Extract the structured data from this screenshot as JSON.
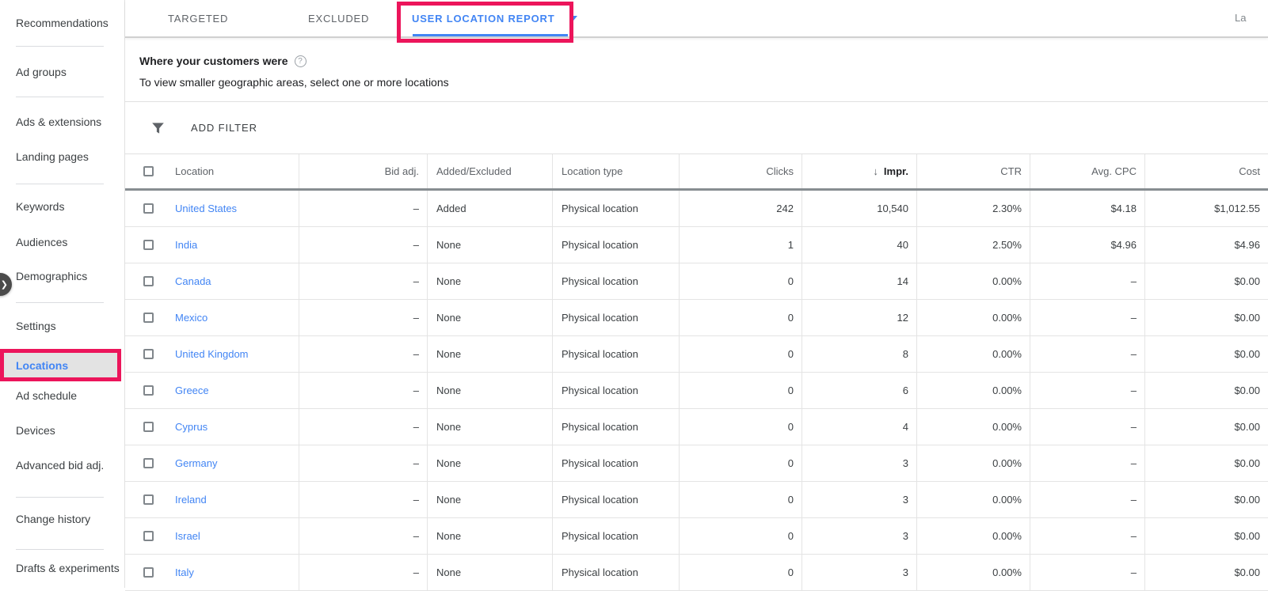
{
  "colors": {
    "annotation_pink": "#ec155b",
    "link_blue": "#4285f4"
  },
  "icons": {
    "expand_chevron": "❯",
    "help": "?"
  },
  "top_right_partial": "La",
  "sidebar": {
    "items": [
      {
        "label": "Recommendations"
      },
      {
        "label": "Ad groups"
      },
      {
        "label": "Ads & extensions"
      },
      {
        "label": "Landing pages"
      },
      {
        "label": "Keywords"
      },
      {
        "label": "Audiences"
      },
      {
        "label": "Demographics"
      },
      {
        "label": "Settings"
      },
      {
        "label": "Locations",
        "active": true,
        "highlighted": true
      },
      {
        "label": "Ad schedule"
      },
      {
        "label": "Devices"
      },
      {
        "label": "Advanced bid adj."
      },
      {
        "label": "Change history"
      },
      {
        "label": "Drafts & experiments"
      }
    ]
  },
  "tabs": [
    {
      "label": "TARGETED"
    },
    {
      "label": "EXCLUDED"
    },
    {
      "label": "USER LOCATION REPORT",
      "active": true,
      "has_caret": true
    }
  ],
  "intro": {
    "title": "Where your customers were",
    "subtitle": "To view smaller geographic areas, select one or more locations"
  },
  "filter": {
    "label": "ADD FILTER"
  },
  "table": {
    "sort_arrow": "↓",
    "columns": [
      {
        "label": "Location",
        "align": "left"
      },
      {
        "label": "Bid adj.",
        "align": "right"
      },
      {
        "label": "Added/Excluded",
        "align": "left"
      },
      {
        "label": "Location type",
        "align": "left"
      },
      {
        "label": "Clicks",
        "align": "right"
      },
      {
        "label": "Impr.",
        "align": "right",
        "sorted": "desc"
      },
      {
        "label": "CTR",
        "align": "right"
      },
      {
        "label": "Avg. CPC",
        "align": "right"
      },
      {
        "label": "Cost",
        "align": "right"
      }
    ],
    "rows": [
      {
        "location": "United States",
        "bid_adj": "–",
        "added_excluded": "Added",
        "location_type": "Physical location",
        "clicks": "242",
        "impr": "10,540",
        "ctr": "2.30%",
        "avg_cpc": "$4.18",
        "cost": "$1,012.55"
      },
      {
        "location": "India",
        "bid_adj": "–",
        "added_excluded": "None",
        "location_type": "Physical location",
        "clicks": "1",
        "impr": "40",
        "ctr": "2.50%",
        "avg_cpc": "$4.96",
        "cost": "$4.96"
      },
      {
        "location": "Canada",
        "bid_adj": "–",
        "added_excluded": "None",
        "location_type": "Physical location",
        "clicks": "0",
        "impr": "14",
        "ctr": "0.00%",
        "avg_cpc": "–",
        "cost": "$0.00"
      },
      {
        "location": "Mexico",
        "bid_adj": "–",
        "added_excluded": "None",
        "location_type": "Physical location",
        "clicks": "0",
        "impr": "12",
        "ctr": "0.00%",
        "avg_cpc": "–",
        "cost": "$0.00"
      },
      {
        "location": "United Kingdom",
        "bid_adj": "–",
        "added_excluded": "None",
        "location_type": "Physical location",
        "clicks": "0",
        "impr": "8",
        "ctr": "0.00%",
        "avg_cpc": "–",
        "cost": "$0.00"
      },
      {
        "location": "Greece",
        "bid_adj": "–",
        "added_excluded": "None",
        "location_type": "Physical location",
        "clicks": "0",
        "impr": "6",
        "ctr": "0.00%",
        "avg_cpc": "–",
        "cost": "$0.00"
      },
      {
        "location": "Cyprus",
        "bid_adj": "–",
        "added_excluded": "None",
        "location_type": "Physical location",
        "clicks": "0",
        "impr": "4",
        "ctr": "0.00%",
        "avg_cpc": "–",
        "cost": "$0.00"
      },
      {
        "location": "Germany",
        "bid_adj": "–",
        "added_excluded": "None",
        "location_type": "Physical location",
        "clicks": "0",
        "impr": "3",
        "ctr": "0.00%",
        "avg_cpc": "–",
        "cost": "$0.00"
      },
      {
        "location": "Ireland",
        "bid_adj": "–",
        "added_excluded": "None",
        "location_type": "Physical location",
        "clicks": "0",
        "impr": "3",
        "ctr": "0.00%",
        "avg_cpc": "–",
        "cost": "$0.00"
      },
      {
        "location": "Israel",
        "bid_adj": "–",
        "added_excluded": "None",
        "location_type": "Physical location",
        "clicks": "0",
        "impr": "3",
        "ctr": "0.00%",
        "avg_cpc": "–",
        "cost": "$0.00"
      },
      {
        "location": "Italy",
        "bid_adj": "–",
        "added_excluded": "None",
        "location_type": "Physical location",
        "clicks": "0",
        "impr": "3",
        "ctr": "0.00%",
        "avg_cpc": "–",
        "cost": "$0.00"
      }
    ]
  }
}
